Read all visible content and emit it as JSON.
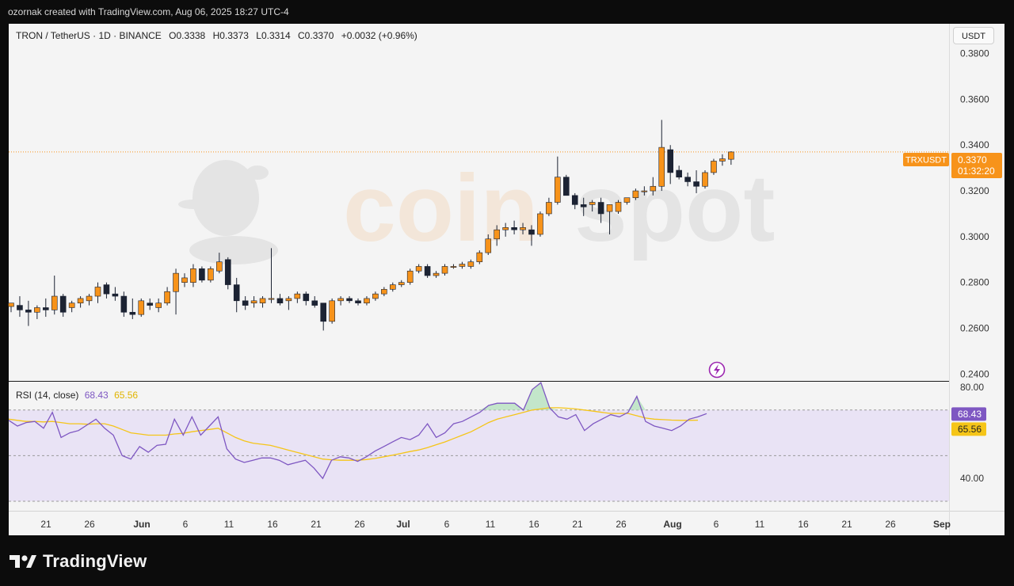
{
  "header": {
    "caption": "ozornak created with TradingView.com, Aug 06, 2025 18:27 UTC-4"
  },
  "legend": {
    "symbol": "TRON / TetherUS · 1D · BINANCE",
    "open": "O0.3338",
    "high": "H0.3373",
    "low": "L0.3314",
    "close": "C0.3370",
    "change": "+0.0032 (+0.96%)"
  },
  "currency_button": "USDT",
  "price_tag": {
    "ticker": "TRXUSDT",
    "price": "0.3370",
    "countdown": "01:32:20"
  },
  "rsi_legend": {
    "label": "RSI (14, close)",
    "rsi_value": "68.43",
    "ma_value": "65.56"
  },
  "watermark": "coinspot",
  "footer": {
    "brand": "TradingView"
  },
  "colors": {
    "up": "#f7931a",
    "down": "#1c2333",
    "rsi_line": "#7e57c2",
    "rsi_ma": "#f5c518",
    "rsi_band": "#e9e3f5",
    "price_line": "#f7931a"
  },
  "chart_data": [
    {
      "type": "candlestick",
      "y_ticks": [
        "0.2400",
        "0.2600",
        "0.2800",
        "0.3000",
        "0.3200",
        "0.3400",
        "0.3600",
        "0.3800"
      ],
      "ylim": [
        0.237,
        0.393
      ],
      "x_ticks": [
        "21",
        "26",
        "Jun",
        "6",
        "11",
        "16",
        "21",
        "26",
        "Jul",
        "6",
        "11",
        "16",
        "21",
        "26",
        "Aug",
        "6",
        "11",
        "16",
        "21",
        "26",
        "Sep"
      ],
      "current_price": 0.337,
      "candles": [
        [
          0.2695,
          0.271,
          0.267,
          0.271
        ],
        [
          0.27,
          0.274,
          0.265,
          0.268
        ],
        [
          0.268,
          0.272,
          0.261,
          0.267
        ],
        [
          0.267,
          0.27,
          0.264,
          0.269
        ],
        [
          0.269,
          0.273,
          0.265,
          0.268
        ],
        [
          0.268,
          0.283,
          0.266,
          0.274
        ],
        [
          0.274,
          0.275,
          0.265,
          0.267
        ],
        [
          0.269,
          0.272,
          0.267,
          0.271
        ],
        [
          0.271,
          0.274,
          0.269,
          0.273
        ],
        [
          0.272,
          0.275,
          0.27,
          0.274
        ],
        [
          0.274,
          0.28,
          0.271,
          0.278
        ],
        [
          0.279,
          0.28,
          0.273,
          0.275
        ],
        [
          0.275,
          0.278,
          0.272,
          0.274
        ],
        [
          0.274,
          0.276,
          0.265,
          0.267
        ],
        [
          0.267,
          0.273,
          0.264,
          0.266
        ],
        [
          0.266,
          0.273,
          0.265,
          0.272
        ],
        [
          0.271,
          0.273,
          0.268,
          0.27
        ],
        [
          0.269,
          0.273,
          0.267,
          0.271
        ],
        [
          0.271,
          0.278,
          0.27,
          0.276
        ],
        [
          0.276,
          0.286,
          0.266,
          0.284
        ],
        [
          0.28,
          0.284,
          0.278,
          0.282
        ],
        [
          0.28,
          0.288,
          0.278,
          0.286
        ],
        [
          0.286,
          0.287,
          0.28,
          0.281
        ],
        [
          0.281,
          0.287,
          0.28,
          0.286
        ],
        [
          0.285,
          0.293,
          0.284,
          0.289
        ],
        [
          0.29,
          0.291,
          0.277,
          0.279
        ],
        [
          0.279,
          0.282,
          0.267,
          0.272
        ],
        [
          0.272,
          0.274,
          0.268,
          0.27
        ],
        [
          0.271,
          0.274,
          0.269,
          0.272
        ],
        [
          0.271,
          0.274,
          0.269,
          0.273
        ],
        [
          0.273,
          0.295,
          0.271,
          0.273
        ],
        [
          0.273,
          0.275,
          0.27,
          0.271
        ],
        [
          0.272,
          0.274,
          0.268,
          0.273
        ],
        [
          0.273,
          0.276,
          0.271,
          0.275
        ],
        [
          0.275,
          0.276,
          0.27,
          0.272
        ],
        [
          0.272,
          0.274,
          0.269,
          0.27
        ],
        [
          0.271,
          0.271,
          0.259,
          0.263
        ],
        [
          0.263,
          0.273,
          0.262,
          0.272
        ],
        [
          0.272,
          0.274,
          0.27,
          0.273
        ],
        [
          0.273,
          0.274,
          0.271,
          0.272
        ],
        [
          0.272,
          0.273,
          0.27,
          0.271
        ],
        [
          0.271,
          0.274,
          0.27,
          0.273
        ],
        [
          0.273,
          0.276,
          0.272,
          0.275
        ],
        [
          0.275,
          0.278,
          0.274,
          0.277
        ],
        [
          0.277,
          0.28,
          0.276,
          0.279
        ],
        [
          0.279,
          0.281,
          0.278,
          0.28
        ],
        [
          0.28,
          0.286,
          0.279,
          0.285
        ],
        [
          0.285,
          0.288,
          0.284,
          0.287
        ],
        [
          0.287,
          0.288,
          0.282,
          0.283
        ],
        [
          0.283,
          0.285,
          0.282,
          0.284
        ],
        [
          0.284,
          0.288,
          0.283,
          0.287
        ],
        [
          0.287,
          0.288,
          0.286,
          0.287
        ],
        [
          0.287,
          0.289,
          0.286,
          0.288
        ],
        [
          0.287,
          0.29,
          0.286,
          0.289
        ],
        [
          0.289,
          0.294,
          0.288,
          0.293
        ],
        [
          0.293,
          0.301,
          0.292,
          0.299
        ],
        [
          0.299,
          0.305,
          0.296,
          0.303
        ],
        [
          0.303,
          0.306,
          0.3,
          0.304
        ],
        [
          0.304,
          0.307,
          0.301,
          0.303
        ],
        [
          0.303,
          0.306,
          0.301,
          0.304
        ],
        [
          0.303,
          0.305,
          0.296,
          0.301
        ],
        [
          0.301,
          0.311,
          0.3,
          0.31
        ],
        [
          0.31,
          0.317,
          0.309,
          0.315
        ],
        [
          0.315,
          0.335,
          0.314,
          0.326
        ],
        [
          0.326,
          0.327,
          0.318,
          0.318
        ],
        [
          0.318,
          0.319,
          0.312,
          0.314
        ],
        [
          0.314,
          0.317,
          0.309,
          0.313
        ],
        [
          0.314,
          0.316,
          0.311,
          0.315
        ],
        [
          0.315,
          0.317,
          0.306,
          0.31
        ],
        [
          0.311,
          0.314,
          0.301,
          0.314
        ],
        [
          0.311,
          0.316,
          0.31,
          0.315
        ],
        [
          0.315,
          0.317,
          0.314,
          0.317
        ],
        [
          0.317,
          0.321,
          0.316,
          0.32
        ],
        [
          0.32,
          0.322,
          0.318,
          0.32
        ],
        [
          0.32,
          0.326,
          0.318,
          0.322
        ],
        [
          0.322,
          0.351,
          0.32,
          0.339
        ],
        [
          0.338,
          0.34,
          0.323,
          0.328
        ],
        [
          0.329,
          0.331,
          0.325,
          0.326
        ],
        [
          0.326,
          0.328,
          0.322,
          0.324
        ],
        [
          0.324,
          0.329,
          0.319,
          0.322
        ],
        [
          0.322,
          0.329,
          0.321,
          0.328
        ],
        [
          0.328,
          0.334,
          0.327,
          0.333
        ],
        [
          0.333,
          0.336,
          0.331,
          0.334
        ],
        [
          0.3338,
          0.3373,
          0.3314,
          0.337
        ]
      ]
    },
    {
      "type": "line",
      "name": "RSI (14, close)",
      "y_ticks": [
        "80.00",
        "40.00"
      ],
      "ylim": [
        30,
        80
      ],
      "bands": [
        70,
        50,
        30
      ],
      "series": [
        {
          "name": "RSI",
          "values": [
            65.5,
            63,
            64.5,
            65,
            62,
            69,
            58,
            60,
            61,
            63.5,
            66,
            62,
            59,
            50,
            48.5,
            54,
            51.5,
            54.5,
            55,
            66,
            59,
            67,
            59,
            63,
            67,
            53,
            48.5,
            47,
            48,
            49,
            49,
            48,
            46,
            47,
            48,
            44.5,
            40,
            48,
            49.5,
            49,
            47.5,
            49.5,
            52,
            54,
            56,
            58,
            57,
            59,
            64,
            58,
            60,
            64,
            65,
            67,
            69,
            72,
            73,
            73,
            73,
            70,
            79,
            82,
            71,
            67,
            66,
            68,
            61,
            64,
            66,
            68,
            67,
            69,
            76,
            65,
            63,
            62,
            61,
            63,
            66,
            67,
            68.43
          ]
        },
        {
          "name": "RSI MA",
          "values": [
            66,
            65.5,
            65,
            65,
            64.8,
            65,
            64.5,
            64,
            64,
            63.8,
            64,
            64,
            63,
            61.5,
            60,
            59.5,
            59,
            59,
            59,
            59.5,
            59.8,
            60.5,
            61,
            61.5,
            62,
            60,
            58,
            56.5,
            55.5,
            55,
            54.5,
            53.5,
            52.5,
            51.5,
            50.5,
            49.5,
            48.5,
            48.2,
            48,
            48,
            48,
            48.3,
            48.8,
            49.5,
            50.2,
            51,
            51.8,
            52.5,
            53.5,
            54.8,
            56,
            57.5,
            59,
            60.5,
            62.5,
            64.5,
            66,
            67,
            68,
            69,
            70,
            70.5,
            71,
            71,
            70.8,
            70.5,
            70,
            69.5,
            69,
            68.5,
            68.5,
            68.5,
            67.5,
            66.5,
            66,
            65.8,
            65.6,
            65.5,
            65.5,
            65.56
          ]
        }
      ]
    }
  ]
}
